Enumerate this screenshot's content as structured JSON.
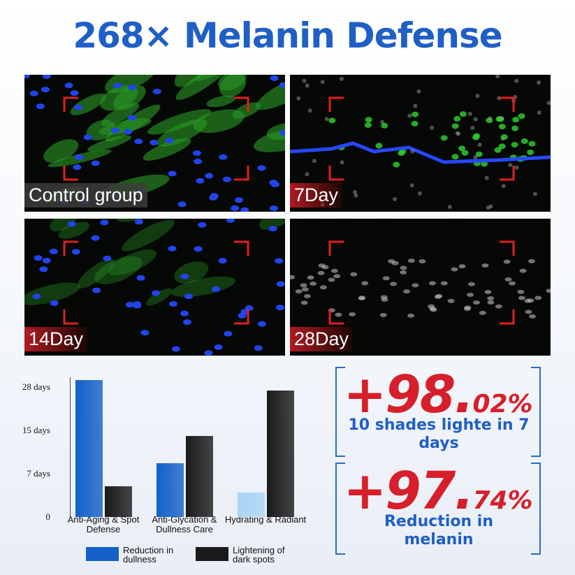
{
  "title": "268× Melanin Defense",
  "panels": [
    {
      "label": "Control group"
    },
    {
      "label": "7Day"
    },
    {
      "label": "14Day"
    },
    {
      "label": "28Day"
    }
  ],
  "chart_data": {
    "type": "bar",
    "categories": [
      "Anti-Aging & Spot Defense",
      "Anti-Glycation & Dullness Care",
      "Hydrating & Radiant"
    ],
    "series": [
      {
        "name": "Reduction in dullness",
        "color": "#1560c8",
        "colors": [
          "#1560c8",
          "#1560c8",
          "#a9d4f5"
        ],
        "values": [
          30,
          9,
          4
        ]
      },
      {
        "name": "Lightening of dark spots",
        "color": "#1a1a1a",
        "values": [
          5,
          14,
          27
        ]
      }
    ],
    "ylim": [
      0,
      31
    ],
    "yticks": [
      0,
      {
        "value": 7,
        "label": "7 days"
      },
      {
        "value": 15,
        "label": "15 days"
      },
      {
        "value": 28,
        "label": "28 days"
      }
    ]
  },
  "stats": [
    {
      "big": "+98.",
      "small": "02%",
      "caption": "10 shades lighte in 7 days"
    },
    {
      "big": "+97.",
      "small": "74%",
      "caption": "Reduction in melanin"
    }
  ]
}
